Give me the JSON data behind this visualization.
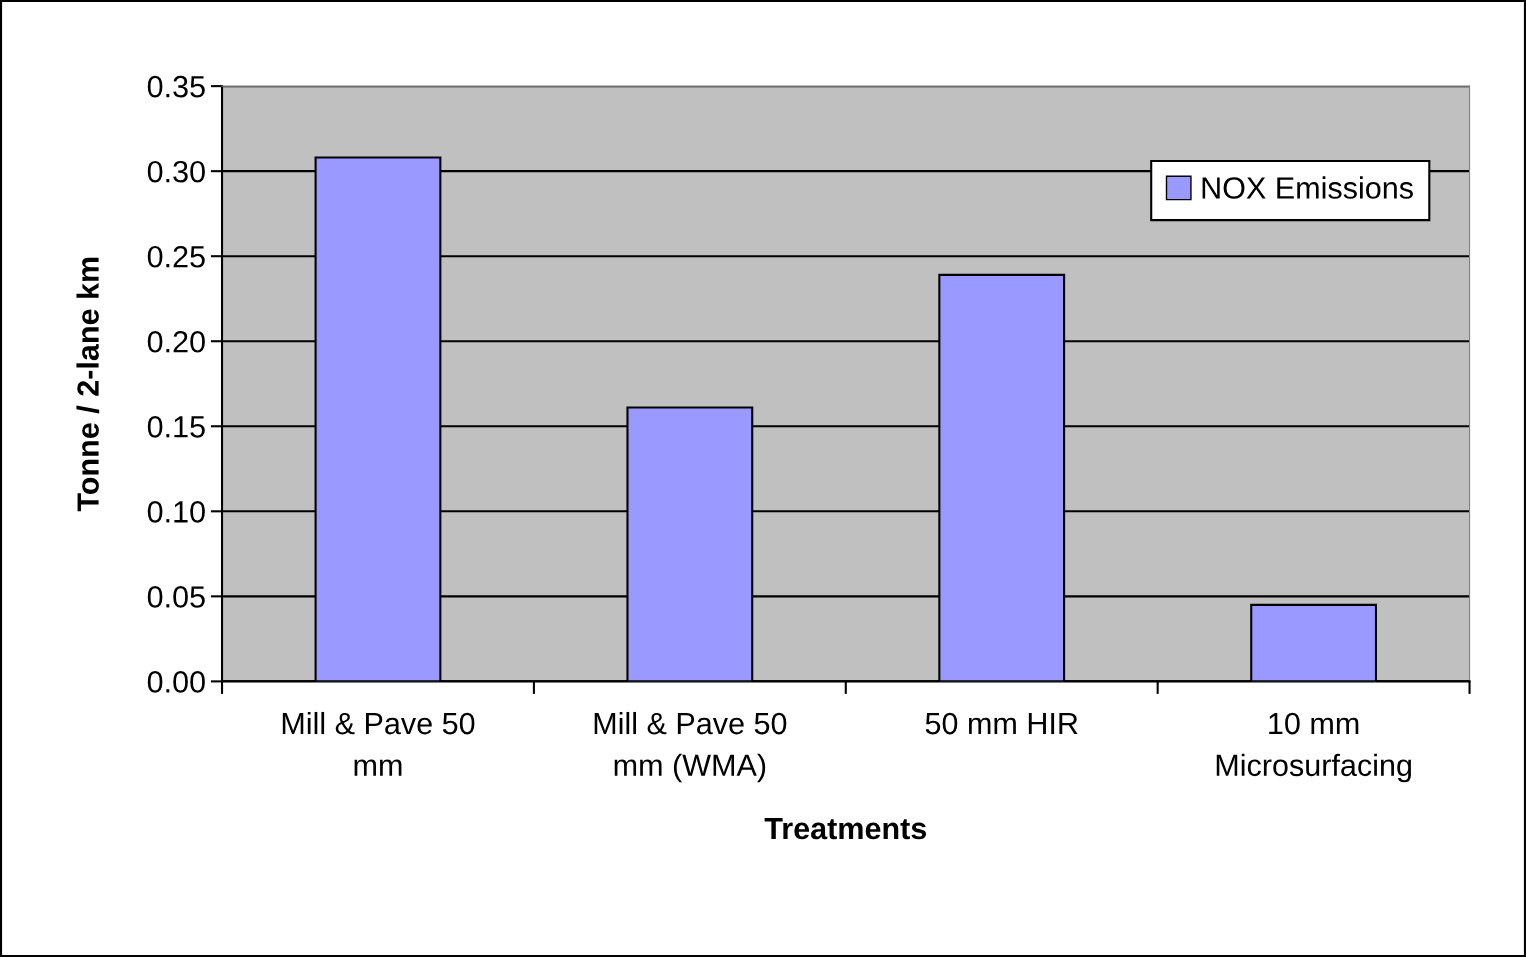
{
  "chart_data": {
    "type": "bar",
    "xlabel": "Treatments",
    "ylabel": "Tonne / 2-lane km",
    "categories": [
      "Mill & Pave 50\nmm",
      "Mill & Pave 50\nmm (WMA)",
      "50 mm HIR",
      "10 mm\nMicrosurfacing"
    ],
    "series": [
      {
        "name": "NOX Emissions",
        "color": "#9999ff",
        "values": [
          0.308,
          0.161,
          0.239,
          0.045
        ]
      }
    ],
    "ylim": [
      0,
      0.35
    ],
    "yticks": [
      {
        "value": 0,
        "label": "0.00"
      },
      {
        "value": 0.05,
        "label": "0.05"
      },
      {
        "value": 0.1,
        "label": "0.10"
      },
      {
        "value": 0.15,
        "label": "0.15"
      },
      {
        "value": 0.2,
        "label": "0.20"
      },
      {
        "value": 0.25,
        "label": "0.25"
      },
      {
        "value": 0.3,
        "label": "0.30"
      },
      {
        "value": 0.35,
        "label": "0.35"
      }
    ],
    "grid": "y",
    "legend": "top right"
  }
}
